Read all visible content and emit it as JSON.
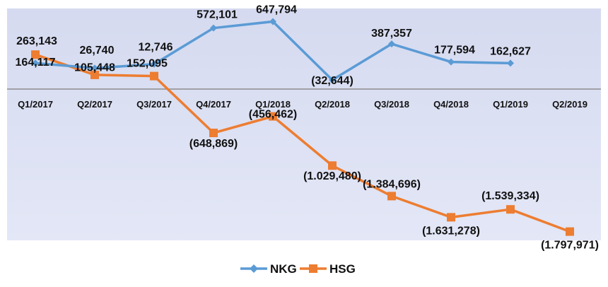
{
  "chart_data": {
    "type": "line",
    "title": "",
    "xlabel": "",
    "ylabel": "",
    "categories": [
      "Q1/2017",
      "Q2/2017",
      "Q3/2017",
      "Q4/2017",
      "Q1/2018",
      "Q2/2018",
      "Q3/2018",
      "Q4/2018",
      "Q1/2019",
      "Q2/2019"
    ],
    "ylim": [
      -1900000,
      800000
    ],
    "grid": false,
    "legend_position": "bottom",
    "series": [
      {
        "name": "NKG",
        "color": "#5B9BD5",
        "marker": "diamond",
        "values": [
          164117,
          105448,
          152095,
          572101,
          647794,
          -32644,
          387357,
          177594,
          162627,
          null
        ],
        "labels": [
          "164,117",
          "105,448",
          "152,095",
          "572,101",
          "647,794",
          "(32,644)",
          "387,357",
          "177,594",
          "162,627",
          ""
        ]
      },
      {
        "name": "HSG",
        "color": "#ED7D31",
        "marker": "square",
        "values": [
          263143,
          26740,
          12746,
          -648869,
          -456462,
          -1029480,
          -1384696,
          -1631278,
          -1539334,
          -1797971
        ],
        "labels": [
          "263,143",
          "26,740",
          "12,746",
          "(648,869)",
          "(456,462)",
          "(1.029,480)",
          "(1.384,696)",
          "(1.631,278)",
          "(1.539,334)",
          "(1.797,971)"
        ]
      }
    ]
  }
}
